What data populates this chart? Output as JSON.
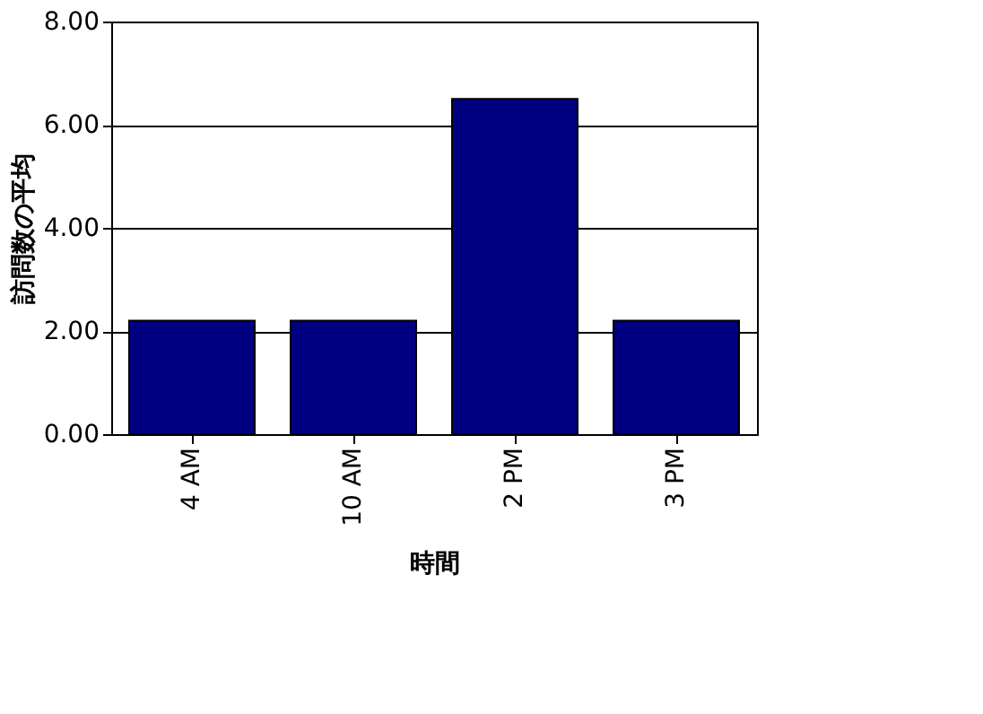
{
  "chart_data": {
    "type": "bar",
    "xlabel": "時間",
    "ylabel": "訪問数の平均",
    "categories": [
      "4 AM",
      "10 AM",
      "2 PM",
      "3 PM"
    ],
    "values": [
      2.2,
      2.2,
      6.5,
      2.2
    ],
    "color": "#000080",
    "ylim": [
      0,
      8
    ],
    "yticks": [
      {
        "value": 0,
        "label": "0.00"
      },
      {
        "value": 2,
        "label": "2.00"
      },
      {
        "value": 4,
        "label": "4.00"
      },
      {
        "value": 6,
        "label": "6.00"
      },
      {
        "value": 8,
        "label": "8.00"
      }
    ],
    "grid": "y"
  }
}
